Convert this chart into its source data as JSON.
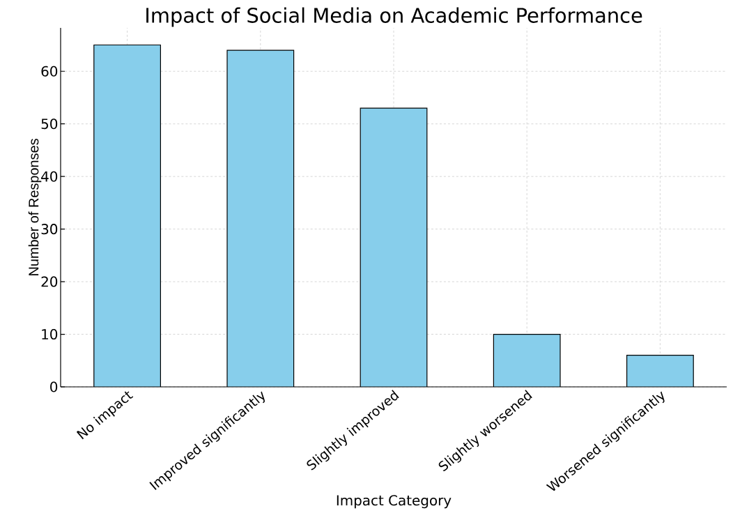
{
  "chart_data": {
    "type": "bar",
    "title": "Impact of Social Media on Academic Performance",
    "xlabel": "Impact Category",
    "ylabel": "Number of Responses",
    "categories": [
      "No impact",
      "Improved significantly",
      "Slightly improved",
      "Slightly worsened",
      "Worsened significantly"
    ],
    "values": [
      65,
      64,
      53,
      10,
      6
    ],
    "color": "#87ceeb",
    "ylim": [
      0,
      68.25
    ],
    "yticks": [
      0,
      10,
      20,
      30,
      40,
      50,
      60
    ],
    "grid": true
  }
}
